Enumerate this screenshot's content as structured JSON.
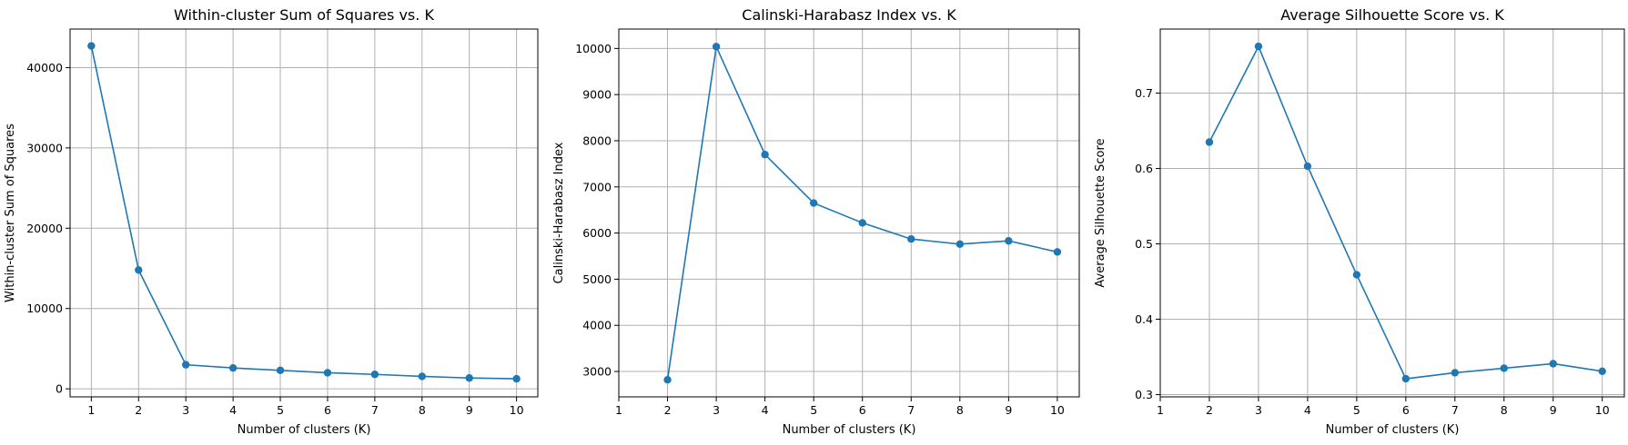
{
  "colors": {
    "line": "#1f77b4",
    "grid": "#b0b0b0",
    "axes": "#000000"
  },
  "chart_data": [
    {
      "type": "line",
      "title": "Within-cluster Sum of Squares vs. K",
      "xlabel": "Number of clusters (K)",
      "ylabel": "Within-cluster Sum of Squares",
      "xlim": [
        0.55,
        10.45
      ],
      "ylim": [
        -1000,
        44800
      ],
      "xticks": [
        1,
        2,
        3,
        4,
        5,
        6,
        7,
        8,
        9,
        10
      ],
      "xtick_labels": [
        "1",
        "2",
        "3",
        "4",
        "5",
        "6",
        "7",
        "8",
        "9",
        "10"
      ],
      "yticks": [
        0,
        10000,
        20000,
        30000,
        40000
      ],
      "ytick_labels": [
        "0",
        "10000",
        "20000",
        "30000",
        "40000"
      ],
      "grid": true,
      "marker": "circle",
      "x": [
        1,
        2,
        3,
        4,
        5,
        6,
        7,
        8,
        9,
        10
      ],
      "y": [
        42700,
        14800,
        3000,
        2600,
        2300,
        2000,
        1800,
        1550,
        1350,
        1250
      ]
    },
    {
      "type": "line",
      "title": "Calinski-Harabasz Index vs. K",
      "xlabel": "Number of clusters (K)",
      "ylabel": "Calinski-Harabasz Index",
      "xlim": [
        1,
        10.45
      ],
      "ylim": [
        2450,
        10420
      ],
      "xticks": [
        1,
        2,
        3,
        4,
        5,
        6,
        7,
        8,
        9,
        10
      ],
      "xtick_labels": [
        "1",
        "2",
        "3",
        "4",
        "5",
        "6",
        "7",
        "8",
        "9",
        "10"
      ],
      "yticks": [
        3000,
        4000,
        5000,
        6000,
        7000,
        8000,
        9000,
        10000
      ],
      "ytick_labels": [
        "3000",
        "4000",
        "5000",
        "6000",
        "7000",
        "8000",
        "9000",
        "10000"
      ],
      "grid": true,
      "marker": "circle",
      "x": [
        2,
        3,
        4,
        5,
        6,
        7,
        8,
        9,
        10
      ],
      "y": [
        2820,
        10040,
        7700,
        6650,
        6220,
        5870,
        5760,
        5830,
        5590
      ]
    },
    {
      "type": "line",
      "title": "Average Silhouette Score vs. K",
      "xlabel": "Number of clusters (K)",
      "ylabel": "Average Silhouette Score",
      "xlim": [
        1,
        10.45
      ],
      "ylim": [
        0.297,
        0.785
      ],
      "xticks": [
        1,
        2,
        3,
        4,
        5,
        6,
        7,
        8,
        9,
        10
      ],
      "xtick_labels": [
        "1",
        "2",
        "3",
        "4",
        "5",
        "6",
        "7",
        "8",
        "9",
        "10"
      ],
      "yticks": [
        0.3,
        0.4,
        0.5,
        0.6,
        0.7
      ],
      "ytick_labels": [
        "0.3",
        "0.4",
        "0.5",
        "0.6",
        "0.7"
      ],
      "grid": true,
      "marker": "circle",
      "x": [
        2,
        3,
        4,
        5,
        6,
        7,
        8,
        9,
        10
      ],
      "y": [
        0.635,
        0.762,
        0.603,
        0.459,
        0.321,
        0.329,
        0.335,
        0.341,
        0.331
      ]
    }
  ]
}
